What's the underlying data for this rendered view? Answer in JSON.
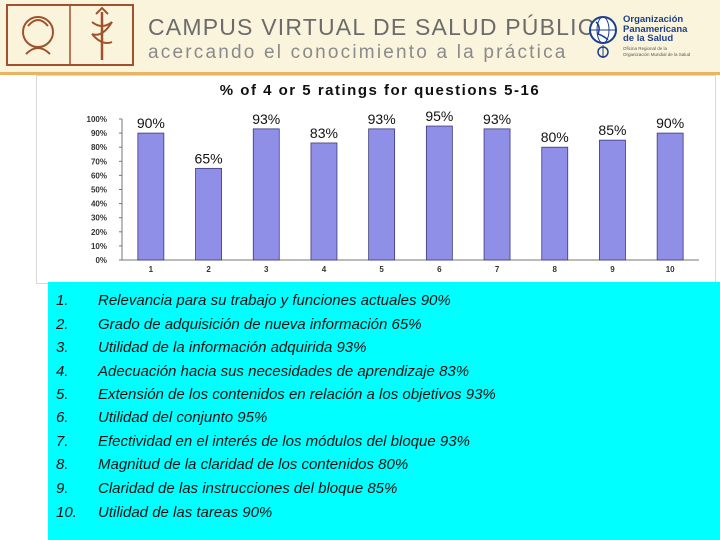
{
  "header": {
    "title": "CAMPUS VIRTUAL DE SALUD PÚBLICA",
    "subtitle": "acercando el conocimiento a la práctica",
    "org_name_lines": [
      "Organización",
      "Panamericana",
      "de la Salud"
    ],
    "org_small_lines": [
      "Oficina Regional de la",
      "Organización Mundial de la Salud"
    ]
  },
  "chart_data": {
    "type": "bar",
    "title": "% of 4 or 5 ratings for questions 5-16",
    "categories": [
      "1",
      "2",
      "3",
      "4",
      "5",
      "6",
      "7",
      "8",
      "9",
      "10"
    ],
    "values": [
      90,
      65,
      93,
      83,
      93,
      95,
      93,
      80,
      85,
      90
    ],
    "value_labels": [
      "90%",
      "65%",
      "93%",
      "83%",
      "93%",
      "95%",
      "93%",
      "80%",
      "85%",
      "90%"
    ],
    "y_ticks": [
      "0%",
      "10%",
      "20%",
      "30%",
      "40%",
      "50%",
      "60%",
      "70%",
      "80%",
      "90%",
      "100%"
    ],
    "ylim": [
      0,
      100
    ],
    "bar_color": "#8f8fe8",
    "bar_edge_color": "#3a3a7a",
    "grid": false
  },
  "items": [
    {
      "num": "1.",
      "text": "Relevancia para su trabajo y funciones actuales 90%"
    },
    {
      "num": "2.",
      "text": "Grado de adquisición de nueva información 65%"
    },
    {
      "num": "3.",
      "text": "Utilidad de la información adquirida 93%"
    },
    {
      "num": "4.",
      "text": "Adecuación hacia sus necesidades de aprendizaje 83%"
    },
    {
      "num": "5.",
      "text": "Extensión de los contenidos en relación a los objetivos 93%"
    },
    {
      "num": "6.",
      "text": "Utilidad del conjunto 95%"
    },
    {
      "num": "7.",
      "text": "Efectividad en el interés de los módulos  del bloque 93%"
    },
    {
      "num": "8.",
      "text": "Magnitud de la claridad de los contenidos 80%"
    },
    {
      "num": "9.",
      "text": "Claridad de las instrucciones del bloque 85%"
    },
    {
      "num": "10.",
      "text": "Utilidad de las tareas 90%"
    }
  ]
}
